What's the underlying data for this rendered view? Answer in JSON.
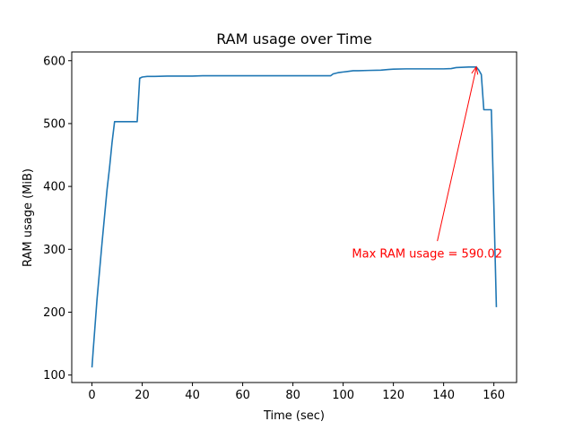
{
  "chart_data": {
    "type": "line",
    "title": "RAM usage over Time",
    "xlabel": "Time (sec)",
    "ylabel": "RAM usage (MiB)",
    "xlim": [
      -8.05,
      169.05
    ],
    "ylim": [
      88.1,
      613.9
    ],
    "xticks": [
      0,
      20,
      40,
      60,
      80,
      100,
      120,
      140,
      160
    ],
    "yticks": [
      100,
      200,
      300,
      400,
      500,
      600
    ],
    "grid": false,
    "legend": "none",
    "series": [
      {
        "color": "#1f77b4",
        "x": [
          0,
          0.5,
          2,
          4,
          6,
          7,
          8,
          9,
          10,
          13,
          16,
          18,
          19,
          20,
          22,
          25,
          30,
          40,
          44,
          50,
          60,
          70,
          80,
          90,
          95,
          96,
          98,
          100,
          102,
          104,
          106,
          110,
          115,
          118,
          120,
          125,
          130,
          135,
          140,
          143,
          145,
          150,
          153,
          154,
          155,
          156,
          157,
          158,
          159,
          160,
          161
        ],
        "y": [
          112,
          140,
          220,
          310,
          395,
          430,
          470,
          503,
          503,
          503,
          503,
          503,
          572,
          574,
          575,
          575,
          575.5,
          575.5,
          576,
          576,
          576,
          576,
          576,
          576,
          576,
          579,
          581,
          582,
          583,
          584,
          584,
          584.5,
          585,
          586,
          586.5,
          587,
          587,
          587,
          587,
          587.5,
          589,
          590,
          590.02,
          585,
          578,
          522,
          522,
          522,
          522,
          370,
          208
        ]
      }
    ],
    "annotation": {
      "text": "Max RAM usage = 590.02",
      "color": "#ff0000",
      "point": {
        "x": 153,
        "y": 590.02
      },
      "text_position": {
        "x": 103.5,
        "y": 293
      }
    }
  }
}
